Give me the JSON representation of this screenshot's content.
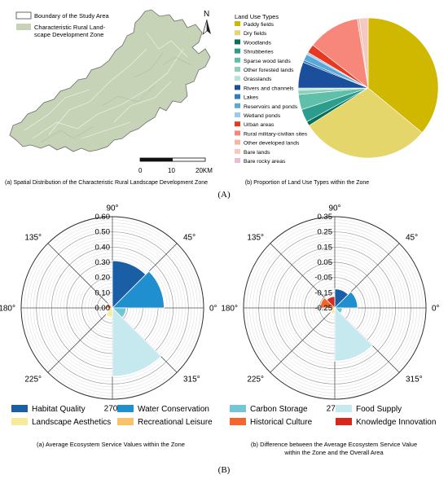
{
  "panel_A": {
    "label": "(A)",
    "map": {
      "legend": {
        "boundary": "Boundary of the Study Area",
        "zone_line1": "Characteristic Rural Land-",
        "zone_line2": "scape Development Zone",
        "zone_color": "#c7d3b6"
      },
      "north": "N",
      "scalebar": {
        "labels": [
          "0",
          "10",
          "20KM"
        ]
      },
      "caption": "(a) Spatial Distribution of the Characteristic Rural Landscape Development Zone"
    },
    "pie_caption": "(b) Proportion of Land Use Types within the Zone"
  },
  "panel_B": {
    "label": "(B)",
    "caption_a": "(a) Average Ecosystem Service Values within the Zone",
    "caption_b_line1": "(b) Difference between the Average Ecosystem Service Value",
    "caption_b_line2": "within the Zone and the Overall Area",
    "angle_labels": [
      "90°",
      "45°",
      "0°",
      "315°",
      "270°",
      "225°",
      "180°",
      "135°"
    ],
    "legend": [
      {
        "name": "Habitat Quality",
        "color": "#1a5fa6"
      },
      {
        "name": "Water Conservation",
        "color": "#1f8fcf"
      },
      {
        "name": "Carbon Storage",
        "color": "#74c6d6"
      },
      {
        "name": "Food Supply",
        "color": "#c6e9ef"
      },
      {
        "name": "Landscape Aesthetics",
        "color": "#f6eb9a"
      },
      {
        "name": "Recreational Leisure",
        "color": "#f7c26a"
      },
      {
        "name": "Historical Culture",
        "color": "#f2652f"
      },
      {
        "name": "Knowledge Innovation",
        "color": "#d7281c"
      }
    ]
  },
  "chart_data": [
    {
      "type": "pie",
      "title": "Land Use Types",
      "categories": [
        "Paddy fields",
        "Dry fields",
        "Woodlands",
        "Shrubberies",
        "Sparse wood lands",
        "Other forested lands",
        "Grasslands",
        "Rivers and channels",
        "Lakes",
        "Reservoirs and ponds",
        "Wetland ponds",
        "Urban areas",
        "Rural military-civilian sites",
        "Other developed lands",
        "Bare lands",
        "Bare rocky areas"
      ],
      "values": [
        36.0,
        30.0,
        1.0,
        3.0,
        3.5,
        1.0,
        0.5,
        6.0,
        0.5,
        1.5,
        0.5,
        2.0,
        12.0,
        0.5,
        2.0,
        0.0
      ],
      "colors": [
        "#d1b800",
        "#e4d66a",
        "#0b6e5a",
        "#2b9d8c",
        "#5fbfa8",
        "#8fd0bc",
        "#b9e3d2",
        "#1b4f9c",
        "#2c7dc3",
        "#5aa8d8",
        "#9ccbe9",
        "#e8381f",
        "#f6877a",
        "#f7b3a3",
        "#f4c9c2",
        "#e6bfd6"
      ]
    },
    {
      "type": "rose",
      "title": "",
      "categories": [
        "Habitat Quality",
        "Water Conservation",
        "Carbon Storage",
        "Food Supply",
        "Landscape Aesthetics",
        "Recreational Leisure",
        "Historical Culture",
        "Knowledge Innovation"
      ],
      "values": [
        0.31,
        0.34,
        0.09,
        0.45,
        0.06,
        0.03,
        0.04,
        0.01
      ],
      "rlim": [
        0.0,
        0.6
      ],
      "ticks": [
        "0.00",
        "0.10",
        "0.20",
        "0.30",
        "0.40",
        "0.50",
        "0.60"
      ]
    },
    {
      "type": "rose",
      "title": "",
      "categories": [
        "Habitat Quality",
        "Water Conservation",
        "Carbon Storage",
        "Food Supply",
        "Landscape Aesthetics",
        "Recreational Leisure",
        "Historical Culture",
        "Knowledge Innovation"
      ],
      "values": [
        -0.125,
        -0.1,
        -0.2,
        0.1,
        -0.21,
        -0.22,
        -0.155,
        -0.175
      ],
      "rlim": [
        -0.25,
        0.35
      ],
      "ticks": [
        "-0.25",
        "-0.15",
        "-0.05",
        "0.05",
        "0.15",
        "0.25",
        "0.35"
      ]
    }
  ]
}
